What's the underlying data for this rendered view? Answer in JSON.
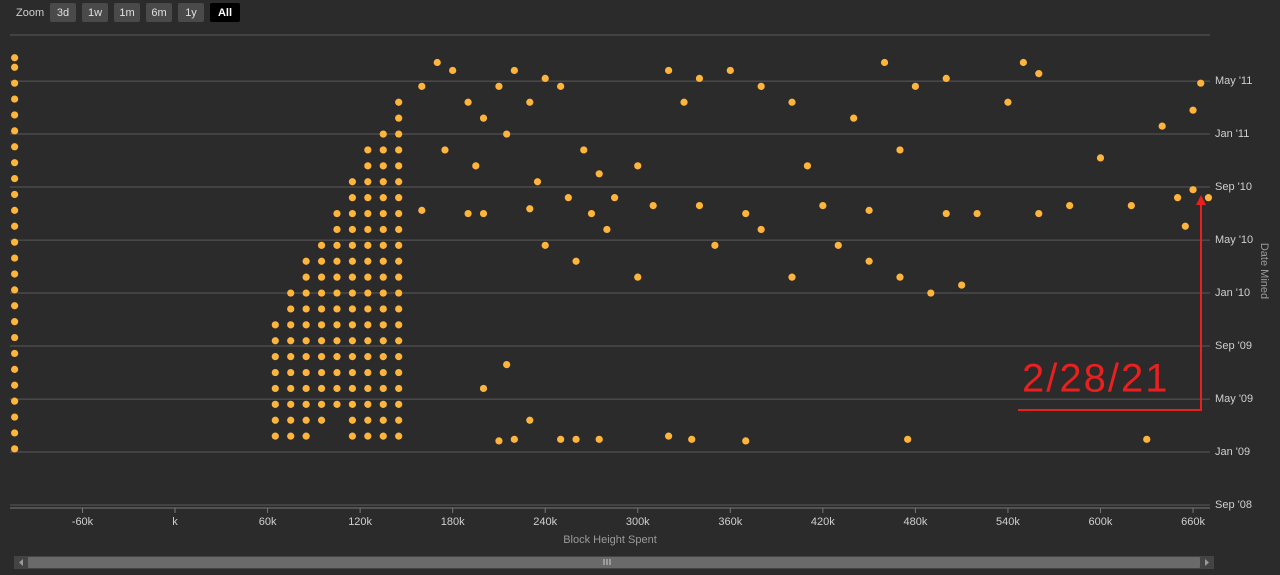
{
  "toolbar": {
    "label": "Zoom",
    "buttons": [
      "3d",
      "1w",
      "1m",
      "6m",
      "1y",
      "All"
    ],
    "selected": 5
  },
  "chart_data": {
    "type": "scatter",
    "x_label": "Block Height Spent",
    "y_label": "Date Mined",
    "annotation": "2/28/21",
    "color": "#ffb43c",
    "grid": true,
    "xlim": [
      -107000,
      671000
    ],
    "ylim": [
      2008.648,
      2011.623
    ],
    "xticks": [
      {
        "value": -60000,
        "label": "-60k"
      },
      {
        "value": 0,
        "label": "k"
      },
      {
        "value": 60000,
        "label": "60k"
      },
      {
        "value": 120000,
        "label": "120k"
      },
      {
        "value": 180000,
        "label": "180k"
      },
      {
        "value": 240000,
        "label": "240k"
      },
      {
        "value": 300000,
        "label": "300k"
      },
      {
        "value": 360000,
        "label": "360k"
      },
      {
        "value": 420000,
        "label": "420k"
      },
      {
        "value": 480000,
        "label": "480k"
      },
      {
        "value": 540000,
        "label": "540k"
      },
      {
        "value": 600000,
        "label": "600k"
      },
      {
        "value": 660000,
        "label": "660k"
      }
    ],
    "yticks": [
      {
        "value": 2008.667,
        "label": "Sep '08"
      },
      {
        "value": 2009,
        "label": "Jan '09"
      },
      {
        "value": 2009.333,
        "label": "May '09"
      },
      {
        "value": 2009.667,
        "label": "Sep '09"
      },
      {
        "value": 2010,
        "label": "Jan '10"
      },
      {
        "value": 2010.333,
        "label": "May '10"
      },
      {
        "value": 2010.667,
        "label": "Sep '10"
      },
      {
        "value": 2011,
        "label": "Jan '11"
      },
      {
        "value": 2011.333,
        "label": "May '11"
      }
    ],
    "x": [
      -104000,
      -104000,
      -104000,
      -104000,
      -104000,
      -104000,
      -104000,
      -104000,
      -104000,
      -104000,
      -104000,
      -104000,
      -104000,
      -104000,
      -104000,
      -104000,
      -104000,
      -104000,
      -104000,
      -104000,
      -104000,
      -104000,
      -104000,
      -104000,
      -104000,
      -104000,
      65000,
      65000,
      65000,
      65000,
      65000,
      65000,
      65000,
      65000,
      75000,
      75000,
      75000,
      75000,
      75000,
      75000,
      75000,
      75000,
      75000,
      75000,
      85000,
      85000,
      85000,
      85000,
      85000,
      85000,
      85000,
      85000,
      85000,
      85000,
      85000,
      85000,
      95000,
      95000,
      95000,
      95000,
      95000,
      95000,
      95000,
      95000,
      95000,
      95000,
      95000,
      95000,
      105000,
      105000,
      105000,
      105000,
      105000,
      105000,
      105000,
      105000,
      105000,
      105000,
      105000,
      105000,
      105000,
      115000,
      115000,
      115000,
      115000,
      115000,
      115000,
      115000,
      115000,
      115000,
      115000,
      115000,
      115000,
      115000,
      115000,
      115000,
      115000,
      115000,
      125000,
      125000,
      125000,
      125000,
      125000,
      125000,
      125000,
      125000,
      125000,
      125000,
      125000,
      125000,
      125000,
      125000,
      125000,
      125000,
      125000,
      125000,
      125000,
      135000,
      135000,
      135000,
      135000,
      135000,
      135000,
      135000,
      135000,
      135000,
      135000,
      135000,
      135000,
      135000,
      135000,
      135000,
      135000,
      135000,
      135000,
      135000,
      135000,
      145000,
      145000,
      145000,
      145000,
      145000,
      145000,
      145000,
      145000,
      145000,
      145000,
      145000,
      145000,
      145000,
      145000,
      145000,
      145000,
      145000,
      145000,
      145000,
      145000,
      145000,
      145000,
      160000,
      170000,
      180000,
      190000,
      200000,
      210000,
      220000,
      230000,
      240000,
      250000,
      175000,
      195000,
      215000,
      235000,
      255000,
      265000,
      275000,
      285000,
      300000,
      320000,
      330000,
      340000,
      360000,
      380000,
      400000,
      410000,
      420000,
      440000,
      460000,
      470000,
      480000,
      500000,
      430000,
      450000,
      470000,
      490000,
      510000,
      550000,
      560000,
      540000,
      600000,
      640000,
      660000,
      665000,
      670000,
      650000,
      620000,
      580000,
      560000,
      200000,
      230000,
      215000,
      300000,
      350000,
      380000,
      400000,
      200000,
      240000,
      260000,
      280000,
      160000,
      190000,
      230000,
      270000,
      310000,
      340000,
      370000,
      450000,
      500000,
      520000,
      660000,
      655000,
      250000,
      260000,
      275000,
      320000,
      335000,
      370000,
      475000,
      630000,
      210000,
      220000
    ],
    "values": [
      2009.02,
      2009.12,
      2009.22,
      2009.32,
      2009.42,
      2009.52,
      2009.62,
      2009.72,
      2009.82,
      2009.92,
      2010.02,
      2010.12,
      2010.22,
      2010.32,
      2010.42,
      2010.52,
      2010.62,
      2010.72,
      2010.82,
      2010.92,
      2011.02,
      2011.12,
      2011.22,
      2011.32,
      2011.42,
      2011.48,
      2009.1,
      2009.2,
      2009.3,
      2009.4,
      2009.5,
      2009.6,
      2009.7,
      2009.8,
      2009.1,
      2009.2,
      2009.3,
      2009.4,
      2009.5,
      2009.6,
      2009.7,
      2009.8,
      2009.9,
      2010,
      2009.1,
      2009.2,
      2009.3,
      2009.4,
      2009.5,
      2009.6,
      2009.7,
      2009.8,
      2009.9,
      2010,
      2010.1,
      2010.2,
      2009.2,
      2009.3,
      2009.4,
      2009.5,
      2009.6,
      2009.7,
      2009.8,
      2009.9,
      2010,
      2010.1,
      2010.2,
      2010.3,
      2009.3,
      2009.4,
      2009.5,
      2009.6,
      2009.7,
      2009.8,
      2009.9,
      2010,
      2010.1,
      2010.2,
      2010.3,
      2010.4,
      2010.5,
      2009.1,
      2009.2,
      2009.3,
      2009.4,
      2009.5,
      2009.6,
      2009.7,
      2009.8,
      2009.9,
      2010,
      2010.1,
      2010.2,
      2010.3,
      2010.4,
      2010.5,
      2010.6,
      2010.7,
      2009.1,
      2009.2,
      2009.3,
      2009.4,
      2009.5,
      2009.6,
      2009.7,
      2009.8,
      2009.9,
      2010,
      2010.1,
      2010.2,
      2010.3,
      2010.4,
      2010.5,
      2010.6,
      2010.7,
      2010.8,
      2010.9,
      2009.1,
      2009.2,
      2009.3,
      2009.4,
      2009.5,
      2009.6,
      2009.7,
      2009.8,
      2009.9,
      2010,
      2010.1,
      2010.2,
      2010.3,
      2010.4,
      2010.5,
      2010.6,
      2010.7,
      2010.8,
      2010.9,
      2011,
      2009.1,
      2009.2,
      2009.3,
      2009.4,
      2009.5,
      2009.6,
      2009.7,
      2009.8,
      2009.9,
      2010,
      2010.1,
      2010.2,
      2010.3,
      2010.4,
      2010.5,
      2010.6,
      2010.7,
      2010.8,
      2010.9,
      2011,
      2011.1,
      2011.2,
      2011.3,
      2011.45,
      2011.4,
      2011.2,
      2011.1,
      2011.3,
      2011.4,
      2011.2,
      2011.35,
      2011.3,
      2010.9,
      2010.8,
      2011,
      2010.7,
      2010.6,
      2010.9,
      2010.75,
      2010.6,
      2010.8,
      2011.4,
      2011.2,
      2011.35,
      2011.4,
      2011.3,
      2011.2,
      2010.8,
      2010.55,
      2011.1,
      2011.45,
      2010.9,
      2011.3,
      2011.35,
      2010.3,
      2010.2,
      2010.1,
      2010,
      2010.05,
      2011.45,
      2011.38,
      2011.2,
      2010.85,
      2011.05,
      2011.15,
      2011.32,
      2010.6,
      2010.6,
      2010.55,
      2010.55,
      2010.5,
      2009.4,
      2009.2,
      2009.55,
      2010.1,
      2010.3,
      2010.4,
      2010.1,
      2010.5,
      2010.3,
      2010.2,
      2010.4,
      2010.52,
      2010.5,
      2010.53,
      2010.5,
      2010.55,
      2010.55,
      2010.5,
      2010.52,
      2010.5,
      2010.5,
      2010.65,
      2010.42,
      2009.08,
      2009.08,
      2009.08,
      2009.1,
      2009.08,
      2009.07,
      2009.08,
      2009.08,
      2009.07,
      2009.08
    ]
  }
}
